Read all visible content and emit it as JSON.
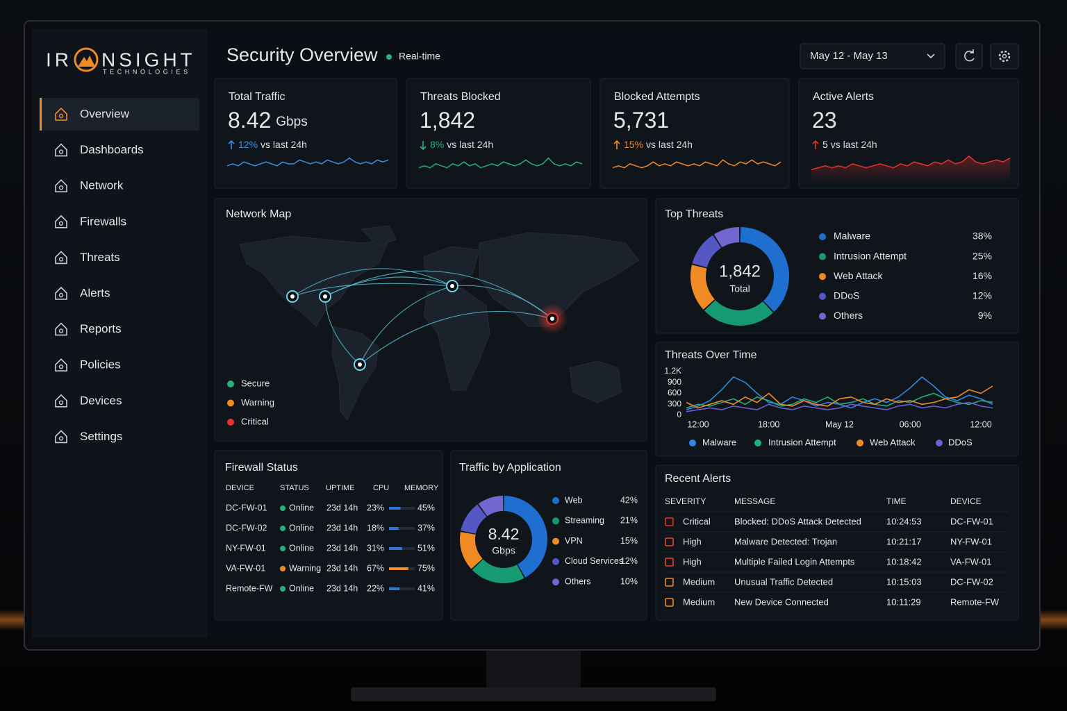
{
  "brand": {
    "name_start": "IR",
    "name_end": "NSIGHT",
    "tagline": "TECHNOLOGIES"
  },
  "nav": [
    {
      "label": "Overview",
      "active": true
    },
    {
      "label": "Dashboards",
      "active": false
    },
    {
      "label": "Network",
      "active": false
    },
    {
      "label": "Firewalls",
      "active": false
    },
    {
      "label": "Threats",
      "active": false
    },
    {
      "label": "Alerts",
      "active": false
    },
    {
      "label": "Reports",
      "active": false
    },
    {
      "label": "Policies",
      "active": false
    },
    {
      "label": "Devices",
      "active": false
    },
    {
      "label": "Settings",
      "active": false
    }
  ],
  "header": {
    "title": "Security Overview",
    "status": "Real-time",
    "date_range": "May 12 - May 13"
  },
  "spark_lim": [
    0,
    10
  ],
  "kpis": [
    {
      "title": "Total Traffic",
      "value": "8.42",
      "unit": "Gbps",
      "change": "12%",
      "change_text": "vs last 24h",
      "direction": "up",
      "color": "#3b8fe0",
      "highlight": false,
      "sparkline": [
        4,
        5,
        4,
        6,
        5,
        4,
        5,
        6,
        5,
        4,
        6,
        5,
        5,
        7,
        6,
        5,
        6,
        5,
        7,
        6,
        5,
        6,
        8,
        6,
        5,
        6,
        5,
        7,
        6,
        7
      ]
    },
    {
      "title": "Threats Blocked",
      "value": "1,842",
      "unit": "",
      "change": "8%",
      "change_text": "vs last 24h",
      "direction": "down",
      "color": "#27b07a",
      "highlight": false,
      "sparkline": [
        3,
        4,
        3,
        5,
        4,
        3,
        5,
        4,
        6,
        4,
        5,
        3,
        4,
        5,
        4,
        6,
        5,
        4,
        5,
        7,
        5,
        4,
        5,
        8,
        5,
        4,
        5,
        4,
        6,
        5
      ]
    },
    {
      "title": "Blocked Attempts",
      "value": "5,731",
      "unit": "",
      "change": "15%",
      "change_text": "vs last 24h",
      "direction": "up",
      "color": "#f08a24",
      "highlight": false,
      "sparkline": [
        3,
        4,
        3,
        5,
        4,
        3,
        4,
        6,
        4,
        5,
        4,
        6,
        5,
        4,
        5,
        4,
        6,
        5,
        4,
        7,
        5,
        4,
        6,
        5,
        7,
        5,
        6,
        5,
        4,
        6
      ]
    },
    {
      "title": "Active Alerts",
      "value": "23",
      "unit": "",
      "change": "5",
      "change_text": "vs last 24h",
      "direction": "up",
      "color": "#e8322a",
      "highlight": true,
      "sparkline": [
        2,
        3,
        4,
        3,
        4,
        3,
        5,
        4,
        3,
        4,
        5,
        4,
        3,
        5,
        4,
        6,
        5,
        4,
        6,
        5,
        7,
        5,
        6,
        9,
        6,
        5,
        6,
        7,
        6,
        8
      ]
    }
  ],
  "network_map": {
    "title": "Network Map",
    "legend": [
      {
        "label": "Secure",
        "color": "#27b07a"
      },
      {
        "label": "Warning",
        "color": "#f08a24"
      },
      {
        "label": "Critical",
        "color": "#e8322a"
      }
    ]
  },
  "top_threats": {
    "title": "Top Threats",
    "total": "1,842",
    "total_label": "Total",
    "categories": [
      "Malware",
      "Intrusion Attempt",
      "Web Attack",
      "DDoS",
      "Others"
    ],
    "values": [
      38,
      25,
      16,
      12,
      9
    ],
    "value_labels": [
      "38%",
      "25%",
      "16%",
      "12%",
      "9%"
    ],
    "colors": [
      "#1f6fd1",
      "#159a72",
      "#f08a24",
      "#5557c4",
      "#7466d0"
    ]
  },
  "threats_over_time": {
    "title": "Threats Over Time",
    "categories": [
      null,
      "12:00",
      null,
      null,
      null,
      null,
      null,
      "18:00",
      null,
      null,
      null,
      null,
      null,
      "May 12",
      null,
      null,
      null,
      null,
      null,
      "06:00",
      null,
      null,
      null,
      null,
      null,
      "12:00",
      null
    ],
    "ylim": [
      0,
      1200
    ],
    "yticks": [
      0,
      300,
      600,
      900,
      {
        "value": 1200,
        "label": "1.2K"
      }
    ],
    "series": [
      {
        "name": "Malware",
        "color": "#2f86e0",
        "values": [
          150,
          250,
          400,
          700,
          1050,
          900,
          600,
          350,
          300,
          500,
          400,
          250,
          350,
          300,
          200,
          350,
          450,
          350,
          500,
          750,
          1050,
          800,
          500,
          400,
          550,
          450,
          300
        ]
      },
      {
        "name": "Intrusion Attempt",
        "color": "#1fae7e",
        "values": [
          200,
          300,
          250,
          350,
          450,
          300,
          500,
          400,
          250,
          300,
          450,
          350,
          500,
          300,
          350,
          450,
          300,
          250,
          400,
          350,
          500,
          600,
          450,
          350,
          300,
          400,
          350
        ]
      },
      {
        "name": "Web Attack",
        "color": "#f08a24",
        "values": [
          350,
          200,
          300,
          400,
          300,
          500,
          350,
          600,
          300,
          250,
          400,
          300,
          250,
          450,
          500,
          350,
          300,
          450,
          350,
          400,
          300,
          350,
          450,
          500,
          700,
          600,
          800
        ]
      },
      {
        "name": "DDoS",
        "color": "#6a5fd6",
        "values": [
          100,
          150,
          200,
          150,
          250,
          200,
          150,
          300,
          200,
          150,
          250,
          200,
          150,
          200,
          300,
          250,
          200,
          150,
          250,
          300,
          200,
          250,
          200,
          300,
          350,
          250,
          200
        ]
      }
    ]
  },
  "firewall_status": {
    "title": "Firewall Status",
    "columns": [
      "DEVICE",
      "STATUS",
      "UPTIME",
      "CPU",
      "MEMORY"
    ],
    "memory_lim": [
      0,
      100
    ],
    "rows": [
      {
        "device": "DC-FW-01",
        "status": "Online",
        "status_color": "#27b07a",
        "uptime": "23d 14h",
        "cpu": "23%",
        "memory": {
          "value": 45,
          "label": "45%"
        }
      },
      {
        "device": "DC-FW-02",
        "status": "Online",
        "status_color": "#27b07a",
        "uptime": "23d 14h",
        "cpu": "18%",
        "memory": {
          "value": 37,
          "label": "37%"
        }
      },
      {
        "device": "NY-FW-01",
        "status": "Online",
        "status_color": "#27b07a",
        "uptime": "23d 14h",
        "cpu": "31%",
        "memory": {
          "value": 51,
          "label": "51%"
        }
      },
      {
        "device": "VA-FW-01",
        "status": "Warning",
        "status_color": "#f08a24",
        "uptime": "23d 14h",
        "cpu": "67%",
        "memory": {
          "value": 75,
          "label": "75%"
        }
      },
      {
        "device": "Remote-FW",
        "status": "Online",
        "status_color": "#27b07a",
        "uptime": "23d 14h",
        "cpu": "22%",
        "memory": {
          "value": 41,
          "label": "41%"
        }
      }
    ]
  },
  "traffic_by_app": {
    "title": "Traffic by Application",
    "total": "8.42",
    "total_unit": "Gbps",
    "categories": [
      "Web",
      "Streaming",
      "VPN",
      "Cloud Services",
      "Others"
    ],
    "values": [
      42,
      21,
      15,
      12,
      10
    ],
    "value_labels": [
      "42%",
      "21%",
      "15%",
      "12%",
      "10%"
    ],
    "colors": [
      "#1f6fd1",
      "#159a72",
      "#f08a24",
      "#5557c4",
      "#7466d0"
    ]
  },
  "recent_alerts": {
    "title": "Recent Alerts",
    "columns": [
      "SEVERITY",
      "MESSAGE",
      "TIME",
      "DEVICE"
    ],
    "rows": [
      {
        "severity": "Critical",
        "color": "#e8322a",
        "message": "Blocked: DDoS Attack Detected",
        "time": "10:24:53",
        "device": "DC-FW-01"
      },
      {
        "severity": "High",
        "color": "#e8472a",
        "message": "Malware Detected: Trojan",
        "time": "10:21:17",
        "device": "NY-FW-01"
      },
      {
        "severity": "High",
        "color": "#e8472a",
        "message": "Multiple Failed Login Attempts",
        "time": "10:18:42",
        "device": "VA-FW-01"
      },
      {
        "severity": "Medium",
        "color": "#f08a24",
        "message": "Unusual Traffic Detected",
        "time": "10:15:03",
        "device": "DC-FW-02"
      },
      {
        "severity": "Medium",
        "color": "#f08a24",
        "message": "New Device Connected",
        "time": "10:11:29",
        "device": "Remote-FW"
      }
    ]
  }
}
